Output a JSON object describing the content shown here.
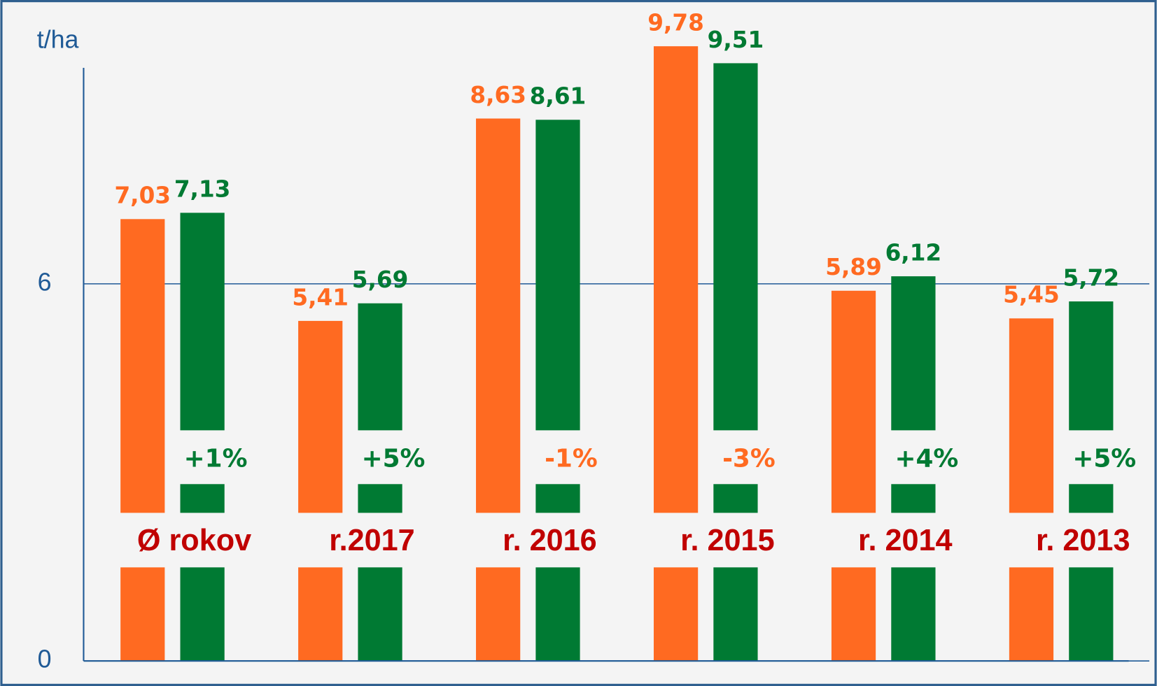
{
  "chart_data": {
    "type": "bar",
    "y_label": "t/ha",
    "categories": [
      "Ø rokov",
      "r.2017",
      "r. 2016",
      "r. 2015",
      "r. 2014",
      "r. 2013"
    ],
    "series": [
      {
        "color": "#ff6a21",
        "values": [
          7.03,
          5.41,
          8.63,
          9.78,
          5.89,
          5.45
        ],
        "value_labels": [
          "7,03",
          "5,41",
          "8,63",
          "9,78",
          "5,89",
          "5,45"
        ]
      },
      {
        "color": "#007a33",
        "values": [
          7.13,
          5.69,
          8.61,
          9.51,
          6.12,
          5.72
        ],
        "value_labels": [
          "7,13",
          "5,69",
          "8,61",
          "9,51",
          "6,12",
          "5,72"
        ]
      }
    ],
    "change_labels": [
      "+1%",
      "+5%",
      "-1%",
      "-3%",
      "+4%",
      "+5%"
    ],
    "change_colors": [
      "#007a33",
      "#007a33",
      "#ff6a21",
      "#ff6a21",
      "#007a33",
      "#007a33"
    ],
    "ylim": [
      0,
      10
    ],
    "yticks": [
      0,
      6
    ],
    "grid": true
  }
}
